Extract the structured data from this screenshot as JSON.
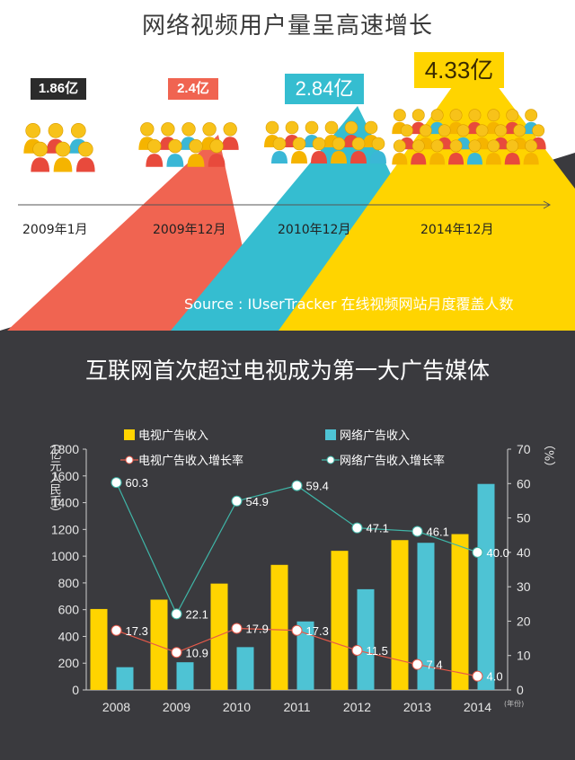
{
  "top": {
    "title": "网络视频用户量呈高速增长",
    "badges": [
      "1.86亿",
      "2.4亿",
      "2.84亿",
      "4.33亿"
    ],
    "periods": [
      "2009年1月",
      "2009年12月",
      "2010年12月",
      "2014年12月"
    ],
    "source": "Source : IUserTracker  在线视频网站月度覆盖人数",
    "colors": {
      "dark": "#2b2b2b",
      "red": "#f06451",
      "cyan": "#35bdd0",
      "yellow": "#ffd400"
    }
  },
  "bottom": {
    "title": "互联网首次超过电视成为第一大广告媒体"
  },
  "chart_data": {
    "type": "bar",
    "categories": [
      "2008",
      "2009",
      "2010",
      "2011",
      "2012",
      "2013",
      "2014"
    ],
    "series": [
      {
        "name": "电视广告收入",
        "kind": "bar",
        "axis": "left",
        "color": "#ffd400",
        "values": [
          605,
          675,
          795,
          935,
          1040,
          1120,
          1165
        ]
      },
      {
        "name": "网络广告收入",
        "kind": "bar",
        "axis": "left",
        "color": "#4ec3d4",
        "values": [
          170,
          207,
          320,
          512,
          753,
          1100,
          1540
        ]
      },
      {
        "name": "电视广告收入增长率",
        "kind": "line",
        "axis": "right",
        "color": "#e85a4a",
        "values": [
          17.3,
          10.9,
          17.9,
          17.3,
          11.5,
          7.4,
          4.0
        ],
        "labels": [
          "17.3",
          "10.9",
          "17.9",
          "17.3",
          "11.5",
          "7.4",
          "4.0"
        ]
      },
      {
        "name": "网络广告收入增长率",
        "kind": "line",
        "axis": "right",
        "color": "#3fb6a8",
        "values": [
          60.3,
          22.1,
          54.9,
          59.4,
          47.1,
          46.1,
          40.0
        ],
        "labels": [
          "60.3",
          "22.1",
          "54.9",
          "59.4",
          "47.1",
          "46.1",
          "40.0"
        ]
      }
    ],
    "ylabel": "（亿元人民币）",
    "ylabel_right": "（%）",
    "xunit": "(年份)",
    "ylim": [
      0,
      1800
    ],
    "yticks": [
      0,
      200,
      400,
      600,
      800,
      1000,
      1200,
      1400,
      1600,
      1800
    ],
    "ylim_right": [
      0,
      70
    ],
    "yticks_right": [
      0,
      10,
      20,
      30,
      40,
      50,
      60,
      70
    ],
    "legend": "top",
    "grid": false
  }
}
